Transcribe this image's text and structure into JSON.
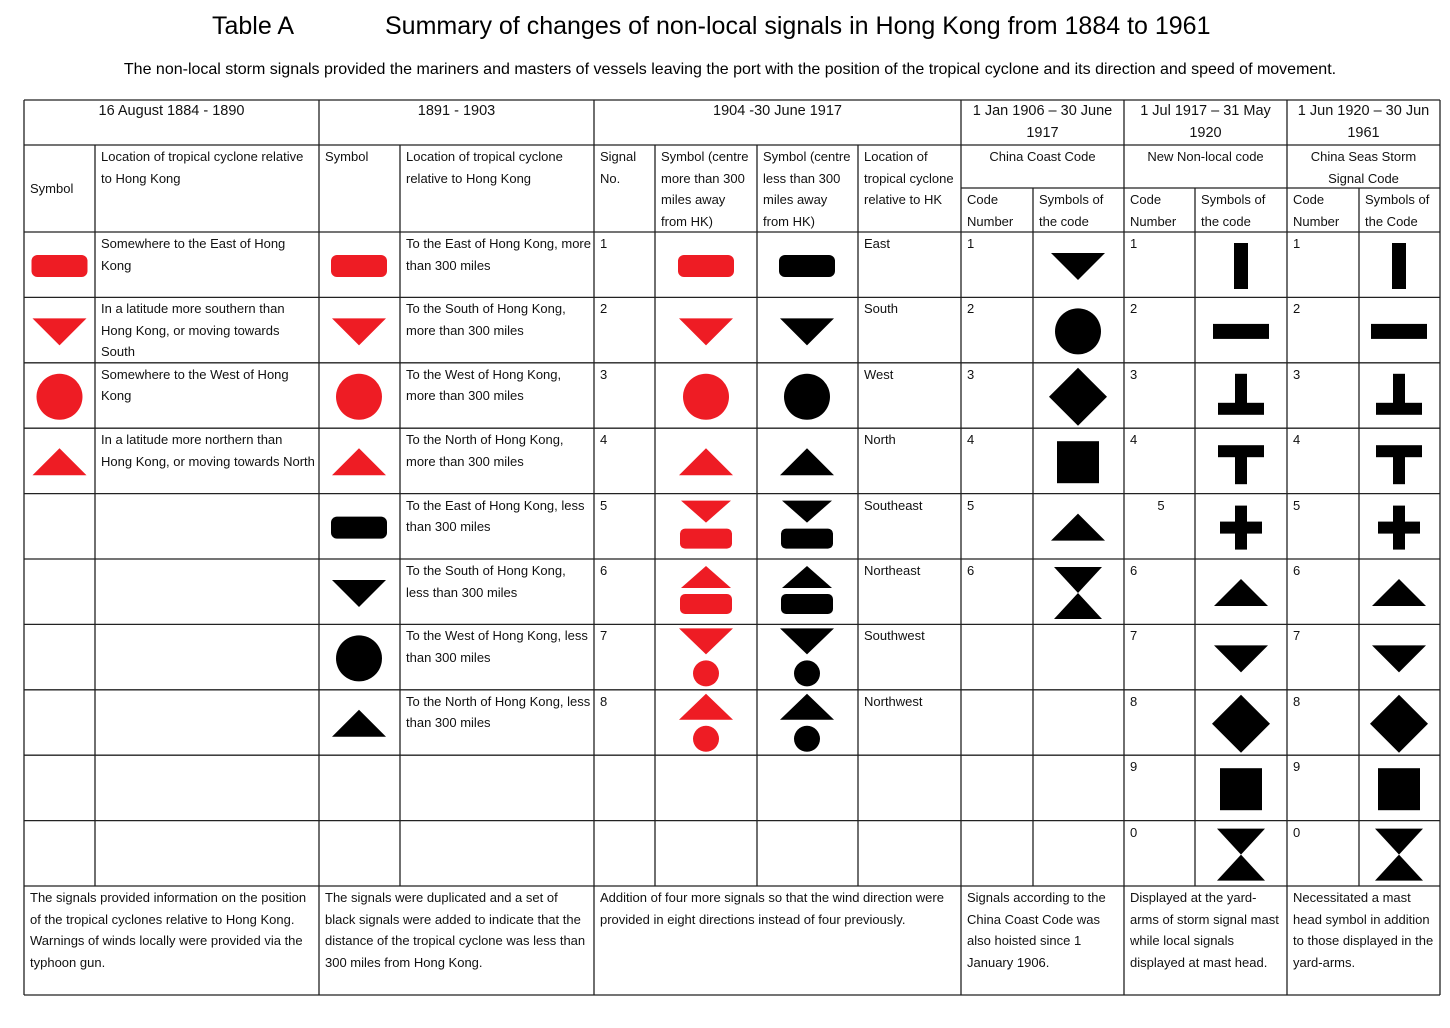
{
  "header": {
    "label": "Table A",
    "title": "Summary of changes of non-local signals in Hong Kong from 1884 to 1961",
    "subtitle": "The non-local storm signals provided the mariners and masters of vessels leaving the port with the position of the tropical cyclone and its direction and speed of movement."
  },
  "table": {
    "periods": [
      "16 August 1884 - 1890",
      "1891 - 1903",
      "1904 -30 June 1917",
      "1 Jan 1906 – 30 June 1917",
      "1 Jul 1917 – 31 May 1920",
      "1 Jun 1920 – 30 Jun 1961"
    ],
    "code_names": [
      "China Coast Code",
      "New Non-local code",
      "China Seas Storm Signal Code"
    ],
    "columns": [
      "Symbol",
      "Location of tropical cyclone relative to Hong Kong",
      "Symbol",
      "Location of tropical cyclone relative to Hong Kong",
      "Signal No.",
      "Symbol (centre more than 300 miles away from HK)",
      "Symbol (centre less than 300 miles away from HK)",
      "Location of tropical cyclone relative to HK",
      "Code Number",
      "Symbols of the code",
      "Code Number",
      "Symbols of the code",
      "Code Number",
      "Symbols of the Code"
    ],
    "rows": [
      [
        "Somewhere to the East of Hong Kong",
        "To the East of Hong Kong, more than 300 miles",
        "1",
        "East",
        "1",
        "1",
        "1"
      ],
      [
        "In a latitude more southern than Hong Kong, or moving towards South",
        "To the South of Hong Kong, more than 300 miles",
        "2",
        "South",
        "2",
        "2",
        "2"
      ],
      [
        "Somewhere to the West of Hong Kong",
        "To the West of Hong Kong, more than 300 miles",
        "3",
        "West",
        "3",
        "3",
        "3"
      ],
      [
        "In a latitude more northern than Hong Kong, or moving towards North",
        "To the North of Hong Kong, more than 300 miles",
        "4",
        "North",
        "4",
        "4",
        "4"
      ],
      [
        null,
        "To the East of Hong Kong, less than 300 miles",
        "5",
        "Southeast",
        "5",
        "5",
        "5"
      ],
      [
        null,
        "To the South of Hong Kong, less than 300 miles",
        "6",
        "Northeast",
        "6",
        "6",
        "6"
      ],
      [
        null,
        "To the West of Hong Kong, less than 300 miles",
        "7",
        "Southwest",
        null,
        "7",
        "7"
      ],
      [
        null,
        "To the North of Hong Kong, less than 300 miles",
        "8",
        "Northwest",
        null,
        "8",
        "8"
      ],
      [
        null,
        null,
        null,
        null,
        null,
        "9",
        "9"
      ],
      [
        null,
        null,
        null,
        null,
        null,
        "0",
        "0"
      ]
    ],
    "notes": [
      "The signals provided information on the position of the tropical cyclones relative to Hong Kong.    Warnings of winds locally were provided via the typhoon gun.",
      "The signals were duplicated and a set of black signals were added to indicate that the distance of the tropical cyclone was less than 300 miles from Hong Kong.",
      "Addition of four more signals so that the wind direction were provided in eight directions instead of four previously.",
      "Signals according to the China Coast Code was also hoisted since 1 January 1906.",
      "Displayed at the yard-arms of storm signal mast while local signals displayed at mast head.",
      "Necessitated a mast head symbol in addition to those displayed in the yard-arms."
    ]
  }
}
